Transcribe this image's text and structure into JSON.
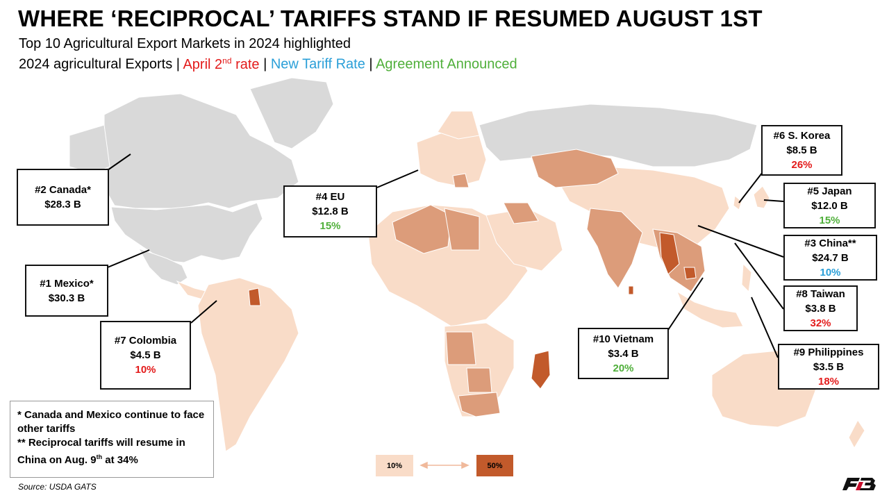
{
  "title": "WHERE ‘RECIPROCAL’ TARIFFS STAND IF RESUMED AUGUST 1ST",
  "subtitle": "Top 10 Agricultural Export Markets in 2024 highlighted",
  "legend_line": {
    "exports": "2024 agricultural Exports",
    "sep": " | ",
    "april_prefix": "April 2",
    "april_sup": "nd",
    "april_suffix": " rate",
    "new_rate": "New Tariff Rate",
    "agreement": "Agreement Announced"
  },
  "colors": {
    "april_rate": "#e31b1b",
    "new_rate": "#2a9fd8",
    "agreement": "#4faf3a",
    "scale_low": "#f9dcc8",
    "scale_high": "#c25a2b",
    "no_data": "#d9d9d9"
  },
  "markets": [
    {
      "label": "#2 Canada*",
      "value": "$28.3 B",
      "rate": "",
      "status": "none"
    },
    {
      "label": "#1 Mexico*",
      "value": "$30.3 B",
      "rate": "",
      "status": "none"
    },
    {
      "label": "#7 Colombia",
      "value": "$4.5 B",
      "rate": "10%",
      "status": "april"
    },
    {
      "label": "#4 EU",
      "value": "$12.8 B",
      "rate": "15%",
      "status": "agreement"
    },
    {
      "label": "#10 Vietnam",
      "value": "$3.4 B",
      "rate": "20%",
      "status": "agreement"
    },
    {
      "label": "#6 S. Korea",
      "value": "$8.5 B",
      "rate": "26%",
      "status": "april"
    },
    {
      "label": "#5 Japan",
      "value": "$12.0 B",
      "rate": "15%",
      "status": "agreement"
    },
    {
      "label": "#3 China**",
      "value": "$24.7 B",
      "rate": "10%",
      "status": "new"
    },
    {
      "label": "#8 Taiwan",
      "value": "$3.8 B",
      "rate": "32%",
      "status": "april"
    },
    {
      "label": "#9 Philippines",
      "value": "$3.5 B",
      "rate": "18%",
      "status": "april"
    }
  ],
  "notes": {
    "line1": "* Canada and Mexico continue to face other tariffs",
    "line2_prefix": "** Reciprocal tariffs will resume in China on Aug. 9",
    "line2_sup": "th",
    "line2_suffix": " at 34%"
  },
  "scale": {
    "min_label": "10%",
    "max_label": "50%",
    "min": 10,
    "max": 50
  },
  "source": "Source: USDA GATS",
  "logo_icon": "fb-logo-icon"
}
